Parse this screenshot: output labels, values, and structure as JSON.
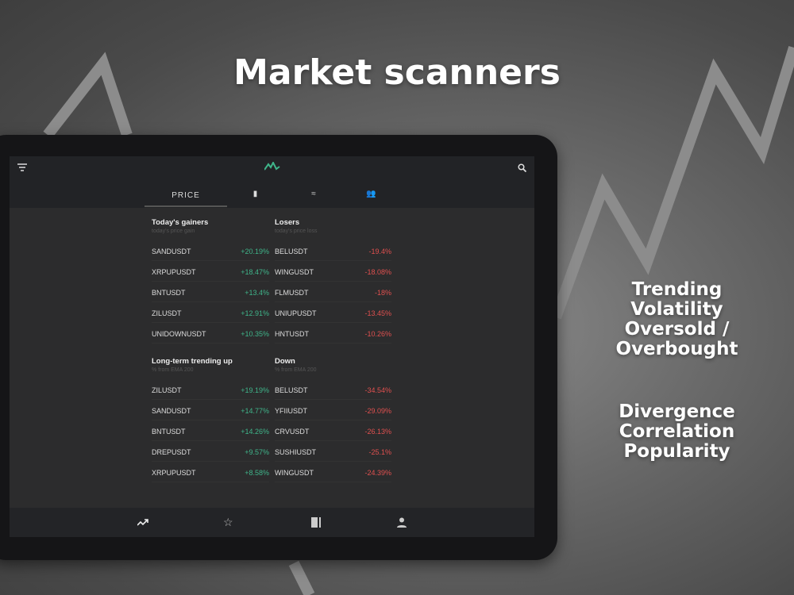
{
  "headline": "Market scanners",
  "features_1": [
    "Trending",
    "Volatility",
    "Oversold / Overbought"
  ],
  "features_2": [
    "Divergence",
    "Correlation",
    "Popularity"
  ],
  "colors": {
    "positive": "#3fb58a",
    "negative": "#e0504f",
    "logo": "#3fb58a"
  },
  "header": {
    "filter_icon": "filter-icon",
    "logo": "mountain-logo",
    "search_icon": "search-icon"
  },
  "tabs": [
    {
      "label": "PRICE",
      "active": true
    },
    {
      "icon": "bar-chart-icon"
    },
    {
      "icon": "volatility-icon"
    },
    {
      "icon": "people-icon"
    }
  ],
  "sections": [
    {
      "left": {
        "title": "Today's gainers",
        "subtitle": "today's price gain",
        "rows": [
          [
            "SANDUSDT",
            "+20.19%"
          ],
          [
            "XRPUPUSDT",
            "+18.47%"
          ],
          [
            "BNTUSDT",
            "+13.4%"
          ],
          [
            "ZILUSDT",
            "+12.91%"
          ],
          [
            "UNIDOWNUSDT",
            "+10.35%"
          ]
        ]
      },
      "right": {
        "title": "Losers",
        "subtitle": "today's price loss",
        "rows": [
          [
            "BELUSDT",
            "-19.4%"
          ],
          [
            "WINGUSDT",
            "-18.08%"
          ],
          [
            "FLMUSDT",
            "-18%"
          ],
          [
            "UNIUPUSDT",
            "-13.45%"
          ],
          [
            "HNTUSDT",
            "-10.26%"
          ]
        ]
      }
    },
    {
      "left": {
        "title": "Long-term trending up",
        "subtitle": "% from EMA 200",
        "rows": [
          [
            "ZILUSDT",
            "+19.19%"
          ],
          [
            "SANDUSDT",
            "+14.77%"
          ],
          [
            "BNTUSDT",
            "+14.26%"
          ],
          [
            "DREPUSDT",
            "+9.57%"
          ],
          [
            "XRPUPUSDT",
            "+8.58%"
          ]
        ]
      },
      "right": {
        "title": "Down",
        "subtitle": "% from EMA 200",
        "rows": [
          [
            "BELUSDT",
            "-34.54%"
          ],
          [
            "YFIIUSDT",
            "-29.09%"
          ],
          [
            "CRVUSDT",
            "-26.13%"
          ],
          [
            "SUSHIUSDT",
            "-25.1%"
          ],
          [
            "WINGUSDT",
            "-24.39%"
          ]
        ]
      }
    }
  ],
  "bottom_nav": [
    "trending-icon",
    "star-icon",
    "book-icon",
    "person-icon"
  ]
}
